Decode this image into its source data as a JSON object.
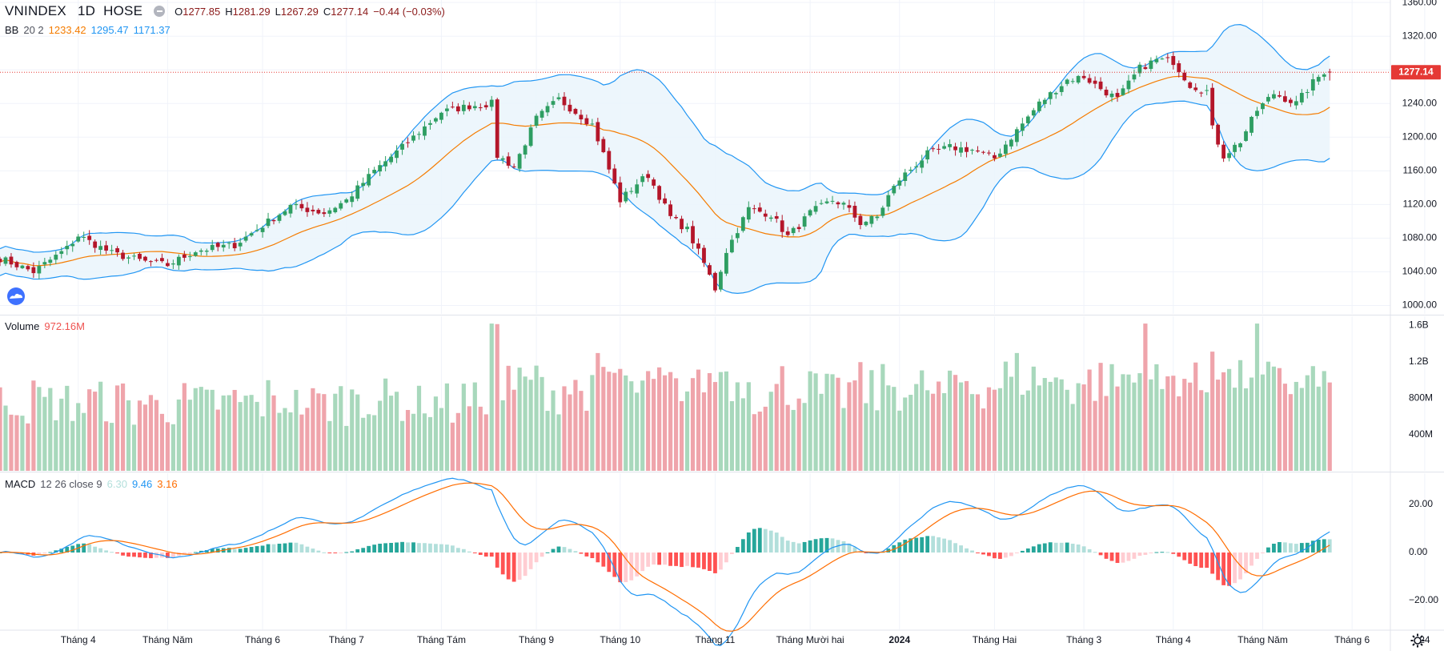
{
  "header": {
    "symbol": "VNINDEX",
    "interval": "1D",
    "exchange": "HOSE",
    "o_label": "O",
    "o_value": "1277.85",
    "h_label": "H",
    "h_value": "1281.29",
    "l_label": "L",
    "l_value": "1267.29",
    "c_label": "C",
    "c_value": "1277.14",
    "change": "−0.44 (−0.03%)"
  },
  "bb_legend": {
    "name": "BB",
    "params": "20 2",
    "basis": "1233.42",
    "upper": "1295.47",
    "lower": "1171.37"
  },
  "volume_legend": {
    "name": "Volume",
    "value": "972.16M"
  },
  "macd_legend": {
    "name": "MACD",
    "params": "12 26 close 9",
    "hist": "6.30",
    "macd": "9.46",
    "signal": "3.16"
  },
  "colors": {
    "up": "#26a69a",
    "down": "#ef5350",
    "candle_up": "#2e9e62",
    "candle_down": "#b4162a",
    "vol_up": "#a8d8bc",
    "vol_down": "#efa4ab",
    "bb_band": "#2196f3",
    "bb_basis": "#f57c00",
    "bb_fill": "#eaf4fc",
    "macd_line": "#2196f3",
    "signal_line": "#ff6d00",
    "hist_up_strong": "#26a69a",
    "hist_up_weak": "#b2dfdb",
    "hist_down_strong": "#ff5252",
    "hist_down_weak": "#ffcdd2",
    "last_price_bg": "#e53935",
    "legend_orange": "#f57c00",
    "legend_blue": "#2196f3",
    "legend_teal": "#26a69a"
  },
  "last_price_label": "1277.14",
  "icons": {
    "logo": "tradingview-cloud-icon",
    "settings": "gear-icon"
  },
  "chart_data": [
    {
      "type": "candlestick",
      "title": "VNINDEX 1D HOSE",
      "ylim": [
        990,
        1363
      ],
      "y_ticks": [
        "1000.00",
        "1040.00",
        "1080.00",
        "1120.00",
        "1160.00",
        "1200.00",
        "1240.00",
        "1280.00",
        "1320.00",
        "1360.00"
      ],
      "x_tick_labels": [
        "Tháng 4",
        "Tháng Năm",
        "Tháng 6",
        "Tháng 7",
        "Tháng Tám",
        "Tháng 9",
        "Tháng 10",
        "Tháng 11",
        "Tháng Mười hai",
        "2024",
        "Tháng Hai",
        "Tháng 3",
        "Tháng 4",
        "Tháng Năm",
        "Tháng 6",
        "24"
      ],
      "x_tick_bar_index": [
        14,
        30,
        47,
        62,
        79,
        96,
        111,
        128,
        145,
        161,
        178,
        194,
        210,
        226,
        242,
        255
      ],
      "close_anchors": [
        [
          0,
          1056
        ],
        [
          6,
          1040
        ],
        [
          12,
          1068
        ],
        [
          14,
          1083
        ],
        [
          20,
          1062
        ],
        [
          26,
          1052
        ],
        [
          30,
          1048
        ],
        [
          35,
          1065
        ],
        [
          42,
          1072
        ],
        [
          47,
          1095
        ],
        [
          52,
          1118
        ],
        [
          58,
          1110
        ],
        [
          62,
          1125
        ],
        [
          67,
          1160
        ],
        [
          72,
          1188
        ],
        [
          79,
          1230
        ],
        [
          84,
          1237
        ],
        [
          88,
          1240
        ],
        [
          89,
          1178
        ],
        [
          92,
          1165
        ],
        [
          96,
          1222
        ],
        [
          100,
          1245
        ],
        [
          104,
          1225
        ],
        [
          106,
          1215
        ],
        [
          108,
          1180
        ],
        [
          111,
          1125
        ],
        [
          114,
          1145
        ],
        [
          116,
          1155
        ],
        [
          120,
          1105
        ],
        [
          123,
          1090
        ],
        [
          126,
          1050
        ],
        [
          128,
          1020
        ],
        [
          130,
          1065
        ],
        [
          132,
          1090
        ],
        [
          134,
          1115
        ],
        [
          138,
          1108
        ],
        [
          141,
          1082
        ],
        [
          143,
          1095
        ],
        [
          145,
          1110
        ],
        [
          149,
          1125
        ],
        [
          151,
          1120
        ],
        [
          154,
          1098
        ],
        [
          157,
          1105
        ],
        [
          159,
          1130
        ],
        [
          161,
          1150
        ],
        [
          166,
          1180
        ],
        [
          170,
          1188
        ],
        [
          174,
          1185
        ],
        [
          178,
          1175
        ],
        [
          181,
          1200
        ],
        [
          186,
          1240
        ],
        [
          191,
          1268
        ],
        [
          194,
          1272
        ],
        [
          196,
          1262
        ],
        [
          200,
          1245
        ],
        [
          204,
          1282
        ],
        [
          207,
          1292
        ],
        [
          210,
          1290
        ],
        [
          213,
          1262
        ],
        [
          216,
          1255
        ],
        [
          217,
          1210
        ],
        [
          219,
          1178
        ],
        [
          222,
          1195
        ],
        [
          225,
          1232
        ],
        [
          228,
          1252
        ],
        [
          232,
          1240
        ],
        [
          235,
          1265
        ],
        [
          237,
          1278
        ],
        [
          238,
          1277
        ]
      ],
      "bollinger": {
        "period": 20,
        "mult": 2,
        "basis_last": 1233.42,
        "upper_last": 1295.47,
        "lower_last": 1171.37
      }
    },
    {
      "type": "bar",
      "title": "Volume",
      "ylim": [
        0,
        1.7
      ],
      "unit": "B",
      "y_ticks": [
        "400M",
        "800M",
        "1.2B",
        "1.6B"
      ],
      "last_value": "972.16M"
    },
    {
      "type": "line",
      "title": "MACD 12 26 close 9",
      "ylim": [
        -32,
        33
      ],
      "y_ticks": [
        "20.00",
        "0.00",
        "−20.00"
      ],
      "series": [
        {
          "name": "MACD",
          "last": 9.46
        },
        {
          "name": "Signal",
          "last": 3.16
        },
        {
          "name": "Histogram",
          "last": 6.3
        }
      ]
    }
  ]
}
